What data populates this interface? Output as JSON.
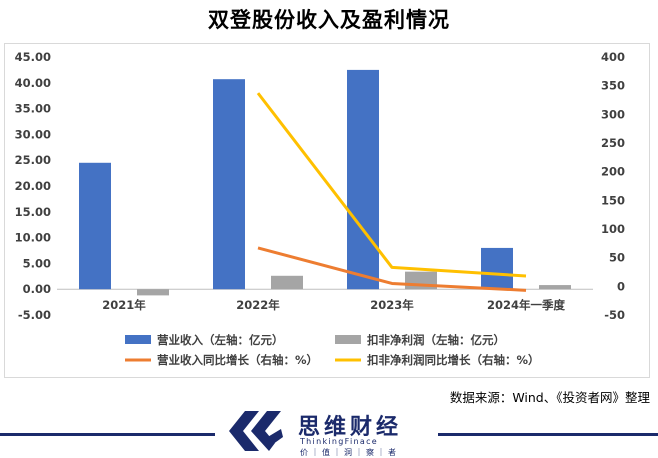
{
  "chart_data": {
    "type": "bar",
    "title": "双登股份收入及盈利情况",
    "categories": [
      "2021年",
      "2022年",
      "2023年",
      "2024年一季度"
    ],
    "left_axis": {
      "ylim": [
        -5,
        45
      ],
      "ticks": [
        "-5.00",
        "0.00",
        "5.00",
        "10.00",
        "15.00",
        "20.00",
        "25.00",
        "30.00",
        "35.00",
        "40.00",
        "45.00"
      ]
    },
    "right_axis": {
      "ylim": [
        -50,
        400
      ],
      "ticks": [
        "-50",
        "0",
        "50",
        "100",
        "150",
        "200",
        "250",
        "300",
        "350",
        "400"
      ]
    },
    "series": [
      {
        "name": "营业收入（左轴：亿元）",
        "kind": "bar",
        "axis": "left",
        "color": "#4472c4",
        "values": [
          24.5,
          40.7,
          42.5,
          8.0
        ]
      },
      {
        "name": "扣非净利润（左轴：亿元）",
        "kind": "bar",
        "axis": "left",
        "color": "#a5a5a5",
        "values": [
          -1.2,
          2.6,
          3.4,
          0.8
        ]
      },
      {
        "name": "营业收入同比增长（右轴：%）",
        "kind": "line",
        "axis": "right",
        "color": "#ed7d31",
        "values": [
          null,
          67,
          5,
          -7
        ]
      },
      {
        "name": "扣非净利润同比增长（右轴：%）",
        "kind": "line",
        "axis": "right",
        "color": "#ffc000",
        "values": [
          null,
          337,
          33,
          18
        ]
      }
    ],
    "grid": false,
    "legend": "bottom"
  },
  "source_note": "数据来源：Wind、《投资者网》整理",
  "brand": {
    "name_cn": "思维财经",
    "name_en": "ThinkingFinace",
    "tagline": "价｜值｜洞｜察｜者",
    "color": "#1b2a6b"
  }
}
